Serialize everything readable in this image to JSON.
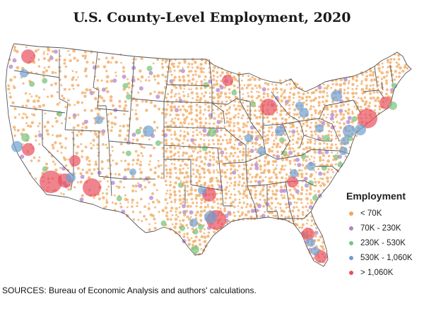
{
  "title": "U.S. County-Level Employment, 2020",
  "source": "SOURCES: Bureau of Economic Analysis and authors' calculations.",
  "legend": {
    "title": "Employment",
    "items": [
      {
        "label": "< 70K",
        "color": "#f2a55a"
      },
      {
        "label": "70K - 230K",
        "color": "#b184c8"
      },
      {
        "label": "230K - 530K",
        "color": "#78c47e"
      },
      {
        "label": "530K - 1,060K",
        "color": "#6f9fd0"
      },
      {
        "label": "> 1,060K",
        "color": "#e84f5e"
      }
    ]
  },
  "colors": {
    "state_border": "#555555",
    "county_dot": "#f2a55a"
  }
}
